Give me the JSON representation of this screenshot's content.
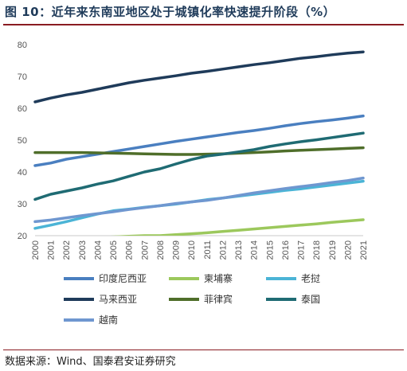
{
  "title": "图 10：近年来东南亚地区处于城镇化率快速提升阶段（%）",
  "source": "数据来源：Wind、国泰君安证券研究",
  "chart_data": {
    "type": "line",
    "title": "图 10：近年来东南亚地区处于城镇化率快速提升阶段（%）",
    "xlabel": "",
    "ylabel": "",
    "ylim": [
      20,
      80
    ],
    "yticks": [
      20,
      30,
      40,
      50,
      60,
      70,
      80
    ],
    "grid": false,
    "legend": "bottom",
    "x": [
      "2000",
      "2001",
      "2002",
      "2003",
      "2004",
      "2005",
      "2006",
      "2007",
      "2008",
      "2009",
      "2010",
      "2011",
      "2012",
      "2013",
      "2014",
      "2015",
      "2016",
      "2017",
      "2018",
      "2019",
      "2020",
      "2021"
    ],
    "series": [
      {
        "name": "印度尼西亚",
        "color": "#4a7fc0",
        "values": [
          42.0,
          42.8,
          44.0,
          44.8,
          45.6,
          46.4,
          47.2,
          48.0,
          48.8,
          49.6,
          50.3,
          51.0,
          51.7,
          52.4,
          53.0,
          53.7,
          54.5,
          55.2,
          55.8,
          56.3,
          56.9,
          57.6
        ]
      },
      {
        "name": "柬埔寨",
        "color": "#9cc85c",
        "values": [
          18.6,
          18.8,
          19.0,
          19.2,
          19.4,
          19.6,
          19.8,
          20.0,
          20.0,
          20.3,
          20.6,
          20.9,
          21.3,
          21.7,
          22.1,
          22.5,
          22.9,
          23.3,
          23.7,
          24.2,
          24.6,
          25.0
        ]
      },
      {
        "name": "老挝",
        "color": "#4bb4d6",
        "values": [
          22.3,
          23.3,
          24.4,
          25.6,
          26.8,
          27.8,
          28.3,
          28.9,
          29.4,
          29.9,
          30.6,
          31.3,
          31.8,
          32.4,
          33.0,
          33.6,
          34.2,
          34.7,
          35.3,
          35.9,
          36.5,
          37.1
        ]
      },
      {
        "name": "马来西亚",
        "color": "#1f3b5a",
        "values": [
          62.0,
          63.2,
          64.2,
          65.0,
          66.0,
          67.0,
          68.0,
          68.8,
          69.5,
          70.2,
          71.0,
          71.6,
          72.3,
          73.0,
          73.7,
          74.3,
          75.0,
          75.7,
          76.2,
          76.8,
          77.3,
          77.7
        ]
      },
      {
        "name": "菲律宾",
        "color": "#4f6e2a",
        "values": [
          46.1,
          46.1,
          46.1,
          46.1,
          46.0,
          45.9,
          45.8,
          45.7,
          45.6,
          45.5,
          45.5,
          45.6,
          45.7,
          45.9,
          46.1,
          46.3,
          46.6,
          46.8,
          47.0,
          47.2,
          47.4,
          47.6
        ]
      },
      {
        "name": "泰国",
        "color": "#1f6b73",
        "values": [
          31.4,
          33.0,
          34.0,
          35.0,
          36.2,
          37.2,
          38.6,
          40.0,
          41.0,
          42.5,
          43.9,
          45.0,
          45.6,
          46.3,
          47.0,
          48.0,
          48.8,
          49.5,
          50.1,
          50.8,
          51.5,
          52.2
        ]
      },
      {
        "name": "越南",
        "color": "#6f97d0",
        "values": [
          24.4,
          24.9,
          25.6,
          26.3,
          26.9,
          27.5,
          28.2,
          28.8,
          29.4,
          30.1,
          30.6,
          31.1,
          31.8,
          32.6,
          33.4,
          34.1,
          34.8,
          35.4,
          36.0,
          36.7,
          37.3,
          38.1
        ]
      }
    ]
  }
}
